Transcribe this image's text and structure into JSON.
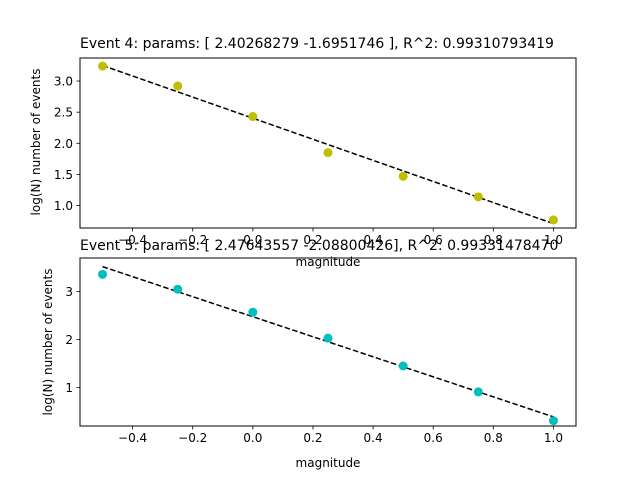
{
  "chart_data": [
    {
      "type": "scatter",
      "title": "Event 4: params: [ 2.40268279 -1.6951746 ], R^2: 0.99310793419",
      "xlabel": "magnitude",
      "ylabel": "log(N) number of events",
      "xlim": [
        -0.575,
        1.075
      ],
      "ylim": [
        0.64,
        3.37
      ],
      "xticks": [
        -0.4,
        -0.2,
        0.0,
        0.2,
        0.4,
        0.6,
        0.8,
        1.0
      ],
      "xtick_labels": [
        "−0.4",
        "−0.2",
        "0.0",
        "0.2",
        "0.4",
        "0.6",
        "0.8",
        "1.0"
      ],
      "yticks": [
        1.0,
        1.5,
        2.0,
        2.5,
        3.0
      ],
      "ytick_labels": [
        "1.0",
        "1.5",
        "2.0",
        "2.5",
        "3.0"
      ],
      "series": [
        {
          "kind": "points",
          "color": "#bfbf00",
          "x": [
            -0.5,
            -0.25,
            0.0,
            0.25,
            0.5,
            0.75,
            1.0
          ],
          "y": [
            3.24,
            2.92,
            2.43,
            1.85,
            1.47,
            1.14,
            0.77
          ]
        },
        {
          "kind": "fit-line",
          "color": "#000000",
          "style": "dashed",
          "x": [
            -0.5,
            1.0
          ],
          "y": [
            3.25,
            0.71
          ]
        }
      ]
    },
    {
      "type": "scatter",
      "title": "Event 5: params: [ 2.47643557 -2.08800426], R^2: 0.99331478470",
      "xlabel": "magnitude",
      "ylabel": "log(N) number of events",
      "xlim": [
        -0.575,
        1.075
      ],
      "ylim": [
        0.2,
        3.7
      ],
      "xticks": [
        -0.4,
        -0.2,
        0.0,
        0.2,
        0.4,
        0.6,
        0.8,
        1.0
      ],
      "xtick_labels": [
        "−0.4",
        "−0.2",
        "0.0",
        "0.2",
        "0.4",
        "0.6",
        "0.8",
        "1.0"
      ],
      "yticks": [
        1,
        2,
        3
      ],
      "ytick_labels": [
        "1",
        "2",
        "3"
      ],
      "series": [
        {
          "kind": "points",
          "color": "#00bfbf",
          "x": [
            -0.5,
            -0.25,
            0.0,
            0.25,
            0.5,
            0.75,
            1.0
          ],
          "y": [
            3.36,
            3.05,
            2.57,
            2.03,
            1.45,
            0.91,
            0.31
          ]
        },
        {
          "kind": "fit-line",
          "color": "#000000",
          "style": "dashed",
          "x": [
            -0.5,
            1.0
          ],
          "y": [
            3.52,
            0.39
          ]
        }
      ]
    }
  ]
}
